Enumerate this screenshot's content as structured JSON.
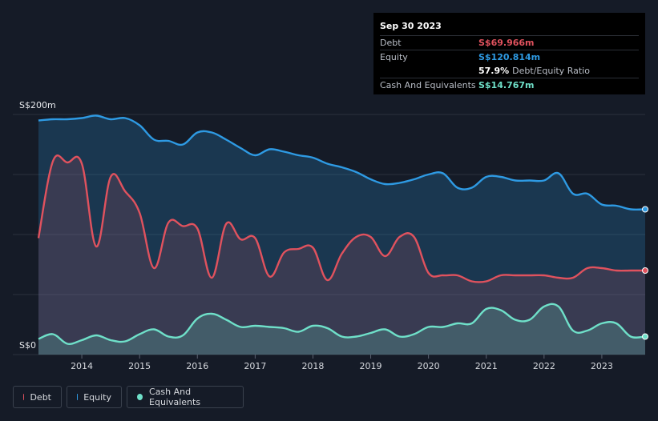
{
  "tooltip": {
    "date": "Sep 30 2023",
    "debt_label": "Debt",
    "debt_value": "S$69.966m",
    "equity_label": "Equity",
    "equity_value": "S$120.814m",
    "ratio_value": "57.9%",
    "ratio_label": "Debt/Equity Ratio",
    "cash_label": "Cash And Equivalents",
    "cash_value": "S$14.767m"
  },
  "legend": {
    "debt": "Debt",
    "equity": "Equity",
    "cash": "Cash And Equivalents"
  },
  "colors": {
    "debt": "#e0525e",
    "equity": "#2e9ae3",
    "cash": "#6fe0c9",
    "background": "#151b27"
  },
  "chart_data": {
    "type": "area",
    "title": "",
    "ylabel": "",
    "ylim": [
      0,
      200
    ],
    "ytick_labels": [
      "S$200m",
      "S$0"
    ],
    "xtick_labels": [
      "2014",
      "2015",
      "2016",
      "2017",
      "2018",
      "2019",
      "2020",
      "2021",
      "2022",
      "2023"
    ],
    "x": [
      2013.25,
      2013.5,
      2013.75,
      2014.0,
      2014.25,
      2014.5,
      2014.75,
      2015.0,
      2015.25,
      2015.5,
      2015.75,
      2016.0,
      2016.25,
      2016.5,
      2016.75,
      2017.0,
      2017.25,
      2017.5,
      2017.75,
      2018.0,
      2018.25,
      2018.5,
      2018.75,
      2019.0,
      2019.25,
      2019.5,
      2019.75,
      2020.0,
      2020.25,
      2020.5,
      2020.75,
      2021.0,
      2021.25,
      2021.5,
      2021.75,
      2022.0,
      2022.25,
      2022.5,
      2022.75,
      2023.0,
      2023.25,
      2023.5,
      2023.75
    ],
    "series": [
      {
        "name": "Equity",
        "values": [
          195,
          196,
          196,
          197,
          199,
          196,
          197,
          191,
          179,
          178,
          175,
          185,
          185,
          179,
          172,
          166,
          171,
          169,
          166,
          164,
          159,
          156,
          152,
          146,
          142,
          143,
          146,
          150,
          151,
          139,
          139,
          148,
          148,
          145,
          145,
          145,
          151,
          134,
          134,
          125,
          124,
          121,
          121
        ]
      },
      {
        "name": "Debt",
        "values": [
          97,
          161,
          160,
          159,
          90,
          148,
          136,
          118,
          72,
          110,
          107,
          105,
          64,
          109,
          96,
          97,
          65,
          85,
          88,
          89,
          62,
          84,
          98,
          98,
          82,
          98,
          98,
          68,
          66,
          66,
          61,
          61,
          66,
          66,
          66,
          66,
          64,
          64,
          72,
          72,
          70,
          70,
          70
        ]
      },
      {
        "name": "Cash And Equivalents",
        "values": [
          13,
          17,
          9,
          12,
          16,
          12,
          11,
          17,
          21,
          15,
          16,
          30,
          34,
          29,
          23,
          24,
          23,
          22,
          19,
          24,
          22,
          15,
          15,
          18,
          21,
          15,
          17,
          23,
          23,
          26,
          26,
          38,
          37,
          29,
          29,
          40,
          40,
          20,
          20,
          26,
          26,
          15,
          15
        ]
      }
    ]
  }
}
